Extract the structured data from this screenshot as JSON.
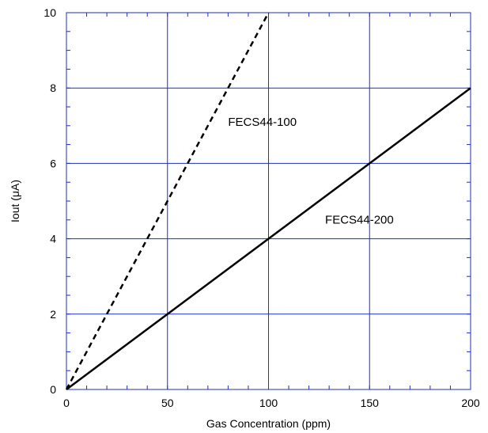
{
  "chart_data": {
    "type": "line",
    "title": "",
    "xlabel": "Gas Concentration (ppm)",
    "ylabel": "Iout (μA)",
    "xlim": [
      0,
      200
    ],
    "ylim": [
      0,
      10
    ],
    "xticks": [
      0,
      50,
      100,
      150,
      200
    ],
    "yticks": [
      0,
      2,
      4,
      6,
      8,
      10
    ],
    "xtick_labels": [
      "0",
      "50",
      "100",
      "150",
      "200"
    ],
    "ytick_labels": [
      "0",
      "2",
      "4",
      "6",
      "8",
      "10"
    ],
    "grid": true,
    "legend": "none",
    "colors": {
      "grid": "#1f2fbf",
      "axes": "#1f2fbf",
      "series": "#000000"
    },
    "series": [
      {
        "name": "FECS44-100",
        "style": "dashed",
        "x": [
          0,
          100
        ],
        "y": [
          0,
          10
        ],
        "label_at": [
          80,
          7
        ]
      },
      {
        "name": "FECS44-200",
        "style": "solid",
        "x": [
          0,
          200
        ],
        "y": [
          0,
          8
        ],
        "label_at": [
          128,
          4.4
        ]
      }
    ]
  }
}
